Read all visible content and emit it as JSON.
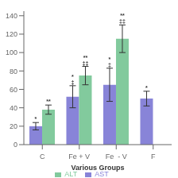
{
  "chart_data": {
    "type": "bar",
    "categories": [
      "C",
      "Fe + V",
      "Fe  - V",
      "F"
    ],
    "xlabel": "Various Groups",
    "series": [
      {
        "name": "AST",
        "color": "#8884d8",
        "values": [
          20,
          52,
          65,
          50
        ],
        "errors": [
          4,
          12,
          18,
          8
        ]
      },
      {
        "name": "ALT",
        "color": "#82ca9d",
        "values": [
          38,
          75,
          115,
          null
        ],
        "errors": [
          5,
          10,
          15,
          null
        ]
      }
    ],
    "ylim": [
      0,
      145
    ],
    "yticks": [
      0,
      20,
      40,
      60,
      80,
      100,
      120,
      140
    ],
    "grid": false,
    "legend": "bottom",
    "annotations": [
      {
        "series": "AST",
        "category": "C",
        "text": "*"
      },
      {
        "series": "ALT",
        "category": "C",
        "text": "**"
      },
      {
        "series": "AST",
        "category": "Fe + V",
        "text": "*\n‡"
      },
      {
        "series": "ALT",
        "category": "Fe + V",
        "text": "**\n‡‡"
      },
      {
        "series": "AST",
        "category": "Fe  - V",
        "text": "*\n‡"
      },
      {
        "series": "ALT",
        "category": "Fe  - V",
        "text": "**\n‡‡"
      },
      {
        "series": "AST",
        "category": "F",
        "text": "*"
      }
    ]
  }
}
